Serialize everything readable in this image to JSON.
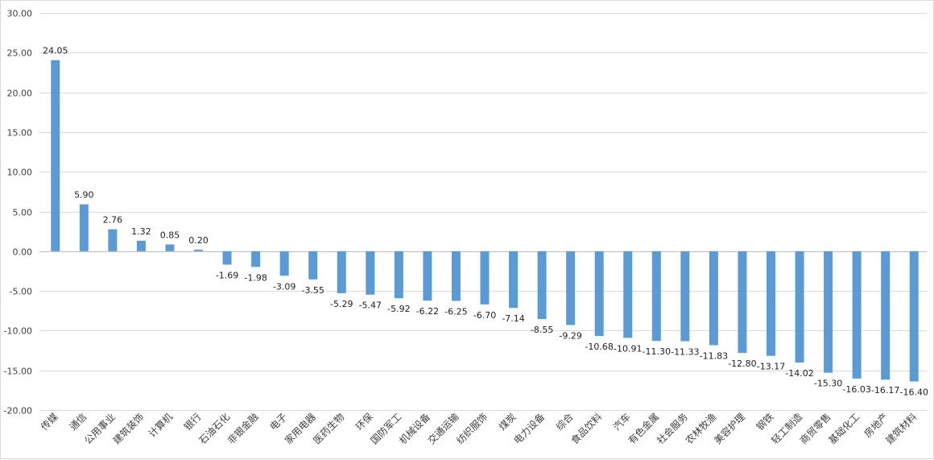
{
  "chart_data": {
    "type": "bar",
    "categories": [
      "传媒",
      "通信",
      "公用事业",
      "建筑装饰",
      "计算机",
      "银行",
      "石油石化",
      "非银金融",
      "电子",
      "家用电器",
      "医药生物",
      "环保",
      "国防军工",
      "机械设备",
      "交通运输",
      "纺织服饰",
      "煤炭",
      "电力设备",
      "综合",
      "食品饮料",
      "汽车",
      "有色金属",
      "社会服务",
      "农林牧渔",
      "美容护理",
      "钢铁",
      "轻工制造",
      "商贸零售",
      "基础化工",
      "房地产",
      "建筑材料"
    ],
    "values": [
      24.05,
      5.9,
      2.76,
      1.32,
      0.85,
      0.2,
      -1.69,
      -1.98,
      -3.09,
      -3.55,
      -5.29,
      -5.47,
      -5.92,
      -6.22,
      -6.25,
      -6.7,
      -7.14,
      -8.55,
      -9.29,
      -10.68,
      -10.91,
      -11.3,
      -11.33,
      -11.83,
      -12.8,
      -13.17,
      -14.02,
      -15.3,
      -16.03,
      -16.17,
      -16.4
    ],
    "value_labels": [
      "24.05",
      "5.90",
      "2.76",
      "1.32",
      "0.85",
      "0.20",
      "-1.69",
      "-1.98",
      "-3.09",
      "-3.55",
      "-5.29",
      "-5.47",
      "-5.92",
      "-6.22",
      "-6.25",
      "-6.70",
      "-7.14",
      "-8.55",
      "-9.29",
      "-10.68",
      "-10.91",
      "-11.30",
      "-11.33",
      "-11.83",
      "-12.80",
      "-13.17",
      "-14.02",
      "-15.30",
      "-16.03",
      "-16.17",
      "-16.40"
    ],
    "title": "",
    "xlabel": "",
    "ylabel": "",
    "ylim": [
      -20,
      30
    ],
    "yticks": [
      30,
      25,
      20,
      15,
      10,
      5,
      0,
      -5,
      -10,
      -15,
      -20
    ],
    "ytick_labels": [
      "30.00",
      "25.00",
      "20.00",
      "15.00",
      "10.00",
      "5.00",
      "0.00",
      "-5.00",
      "-10.00",
      "-15.00",
      "-20.00"
    ],
    "grid": true,
    "legend": "none",
    "colors": {
      "bar": "#5b9bd5",
      "grid": "#d9d9d9",
      "zero_line": "#bfbfbf"
    }
  }
}
